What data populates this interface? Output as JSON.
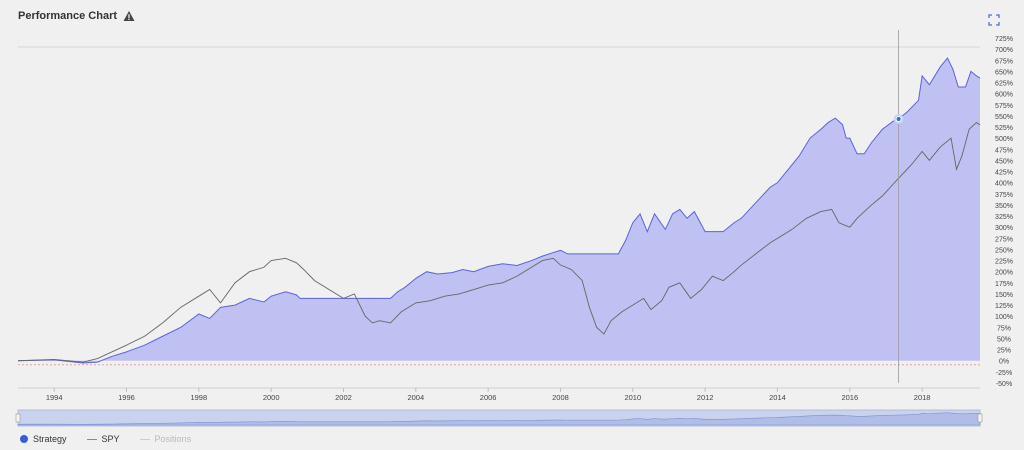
{
  "header": {
    "title": "Performance Chart",
    "warning_icon": "warning-triangle-icon",
    "expand_icon": "fullscreen-icon"
  },
  "colors": {
    "strategy_fill": "#bfc1f2",
    "strategy_line": "#5a63d8",
    "spy_line": "#666666",
    "zero_line": "#e8a0a0",
    "crosshair": "#9a9a9a",
    "marker": "#3a6fd8"
  },
  "legend": {
    "items": [
      {
        "label": "Strategy",
        "kind": "dot",
        "color": "#3a5bd8",
        "enabled": true
      },
      {
        "label": "SPY",
        "kind": "line",
        "color": "#888888",
        "enabled": true
      },
      {
        "label": "Positions",
        "kind": "line",
        "color": "#cccccc",
        "enabled": false
      }
    ]
  },
  "chart_data": {
    "type": "area",
    "title": "Performance Chart",
    "xlabel": "",
    "ylabel": "",
    "xlim": [
      1993.0,
      2019.6
    ],
    "ylim": [
      -50,
      725
    ],
    "x_ticks": [
      "1994",
      "1996",
      "1998",
      "2000",
      "2002",
      "2004",
      "2006",
      "2008",
      "2010",
      "2012",
      "2014",
      "2016",
      "2018"
    ],
    "y_ticks": [
      "725%",
      "700%",
      "675%",
      "650%",
      "625%",
      "600%",
      "575%",
      "550%",
      "525%",
      "500%",
      "475%",
      "450%",
      "425%",
      "400%",
      "375%",
      "350%",
      "325%",
      "300%",
      "275%",
      "250%",
      "225%",
      "200%",
      "175%",
      "150%",
      "125%",
      "100%",
      "75%",
      "50%",
      "25%",
      "0%",
      "-25%",
      "-50%"
    ],
    "crosshair_x": 2017.35,
    "marker": {
      "series": "Strategy",
      "x": 2017.35,
      "y": 543
    },
    "series": [
      {
        "name": "Strategy",
        "style": "area",
        "points": [
          [
            1993.0,
            0
          ],
          [
            1994.0,
            2
          ],
          [
            1994.8,
            -5
          ],
          [
            1995.2,
            -3
          ],
          [
            1995.6,
            10
          ],
          [
            1996.0,
            20
          ],
          [
            1996.5,
            35
          ],
          [
            1997.0,
            55
          ],
          [
            1997.5,
            75
          ],
          [
            1998.0,
            105
          ],
          [
            1998.3,
            95
          ],
          [
            1998.6,
            120
          ],
          [
            1999.0,
            125
          ],
          [
            1999.4,
            140
          ],
          [
            1999.8,
            132
          ],
          [
            2000.0,
            145
          ],
          [
            2000.4,
            155
          ],
          [
            2000.7,
            148
          ],
          [
            2000.8,
            140
          ],
          [
            2001.0,
            140
          ],
          [
            2001.5,
            140
          ],
          [
            2002.0,
            140
          ],
          [
            2002.5,
            140
          ],
          [
            2003.0,
            140
          ],
          [
            2003.3,
            140
          ],
          [
            2003.5,
            155
          ],
          [
            2003.7,
            165
          ],
          [
            2004.0,
            185
          ],
          [
            2004.3,
            200
          ],
          [
            2004.6,
            195
          ],
          [
            2005.0,
            198
          ],
          [
            2005.3,
            205
          ],
          [
            2005.6,
            200
          ],
          [
            2006.0,
            212
          ],
          [
            2006.4,
            218
          ],
          [
            2006.8,
            214
          ],
          [
            2007.2,
            225
          ],
          [
            2007.5,
            235
          ],
          [
            2007.8,
            243
          ],
          [
            2008.0,
            248
          ],
          [
            2008.2,
            240
          ],
          [
            2008.4,
            240
          ],
          [
            2008.8,
            240
          ],
          [
            2009.0,
            240
          ],
          [
            2009.3,
            240
          ],
          [
            2009.6,
            240
          ],
          [
            2009.8,
            270
          ],
          [
            2010.0,
            310
          ],
          [
            2010.2,
            330
          ],
          [
            2010.4,
            290
          ],
          [
            2010.6,
            330
          ],
          [
            2010.9,
            295
          ],
          [
            2011.1,
            330
          ],
          [
            2011.3,
            340
          ],
          [
            2011.5,
            320
          ],
          [
            2011.7,
            335
          ],
          [
            2012.0,
            290
          ],
          [
            2012.3,
            290
          ],
          [
            2012.5,
            290
          ],
          [
            2012.8,
            310
          ],
          [
            2013.0,
            320
          ],
          [
            2013.4,
            355
          ],
          [
            2013.8,
            390
          ],
          [
            2014.0,
            400
          ],
          [
            2014.3,
            430
          ],
          [
            2014.6,
            460
          ],
          [
            2014.9,
            500
          ],
          [
            2015.2,
            520
          ],
          [
            2015.4,
            535
          ],
          [
            2015.6,
            545
          ],
          [
            2015.8,
            530
          ],
          [
            2015.9,
            500
          ],
          [
            2016.0,
            500
          ],
          [
            2016.2,
            465
          ],
          [
            2016.4,
            465
          ],
          [
            2016.6,
            490
          ],
          [
            2016.9,
            520
          ],
          [
            2017.2,
            538
          ],
          [
            2017.35,
            543
          ],
          [
            2017.6,
            560
          ],
          [
            2017.9,
            585
          ],
          [
            2018.0,
            640
          ],
          [
            2018.2,
            620
          ],
          [
            2018.5,
            660
          ],
          [
            2018.7,
            680
          ],
          [
            2018.85,
            655
          ],
          [
            2019.0,
            615
          ],
          [
            2019.2,
            615
          ],
          [
            2019.35,
            650
          ],
          [
            2019.5,
            640
          ],
          [
            2019.6,
            635
          ]
        ]
      },
      {
        "name": "SPY",
        "style": "line",
        "points": [
          [
            1993.0,
            0
          ],
          [
            1994.0,
            3
          ],
          [
            1994.8,
            -3
          ],
          [
            1995.2,
            5
          ],
          [
            1995.6,
            20
          ],
          [
            1996.0,
            35
          ],
          [
            1996.5,
            55
          ],
          [
            1997.0,
            85
          ],
          [
            1997.5,
            120
          ],
          [
            1998.0,
            145
          ],
          [
            1998.3,
            160
          ],
          [
            1998.6,
            130
          ],
          [
            1999.0,
            175
          ],
          [
            1999.4,
            200
          ],
          [
            1999.8,
            210
          ],
          [
            2000.0,
            225
          ],
          [
            2000.4,
            230
          ],
          [
            2000.7,
            220
          ],
          [
            2000.9,
            205
          ],
          [
            2001.2,
            180
          ],
          [
            2001.6,
            160
          ],
          [
            2002.0,
            140
          ],
          [
            2002.3,
            150
          ],
          [
            2002.6,
            100
          ],
          [
            2002.8,
            85
          ],
          [
            2003.0,
            90
          ],
          [
            2003.3,
            85
          ],
          [
            2003.6,
            110
          ],
          [
            2004.0,
            130
          ],
          [
            2004.4,
            135
          ],
          [
            2004.8,
            145
          ],
          [
            2005.2,
            150
          ],
          [
            2005.6,
            160
          ],
          [
            2006.0,
            170
          ],
          [
            2006.4,
            175
          ],
          [
            2006.8,
            190
          ],
          [
            2007.2,
            210
          ],
          [
            2007.5,
            225
          ],
          [
            2007.8,
            230
          ],
          [
            2008.0,
            215
          ],
          [
            2008.3,
            205
          ],
          [
            2008.6,
            180
          ],
          [
            2008.8,
            120
          ],
          [
            2009.0,
            75
          ],
          [
            2009.2,
            60
          ],
          [
            2009.4,
            90
          ],
          [
            2009.7,
            110
          ],
          [
            2010.0,
            125
          ],
          [
            2010.3,
            140
          ],
          [
            2010.5,
            115
          ],
          [
            2010.8,
            135
          ],
          [
            2011.0,
            165
          ],
          [
            2011.3,
            175
          ],
          [
            2011.6,
            140
          ],
          [
            2011.9,
            160
          ],
          [
            2012.2,
            190
          ],
          [
            2012.5,
            180
          ],
          [
            2012.8,
            200
          ],
          [
            2013.0,
            215
          ],
          [
            2013.4,
            240
          ],
          [
            2013.8,
            265
          ],
          [
            2014.0,
            275
          ],
          [
            2014.4,
            295
          ],
          [
            2014.8,
            320
          ],
          [
            2015.2,
            335
          ],
          [
            2015.5,
            340
          ],
          [
            2015.7,
            310
          ],
          [
            2016.0,
            300
          ],
          [
            2016.2,
            320
          ],
          [
            2016.6,
            350
          ],
          [
            2016.9,
            370
          ],
          [
            2017.35,
            410
          ],
          [
            2017.7,
            440
          ],
          [
            2018.0,
            470
          ],
          [
            2018.2,
            450
          ],
          [
            2018.5,
            480
          ],
          [
            2018.8,
            500
          ],
          [
            2018.95,
            430
          ],
          [
            2019.1,
            460
          ],
          [
            2019.3,
            520
          ],
          [
            2019.5,
            535
          ],
          [
            2019.6,
            530
          ]
        ]
      }
    ]
  }
}
